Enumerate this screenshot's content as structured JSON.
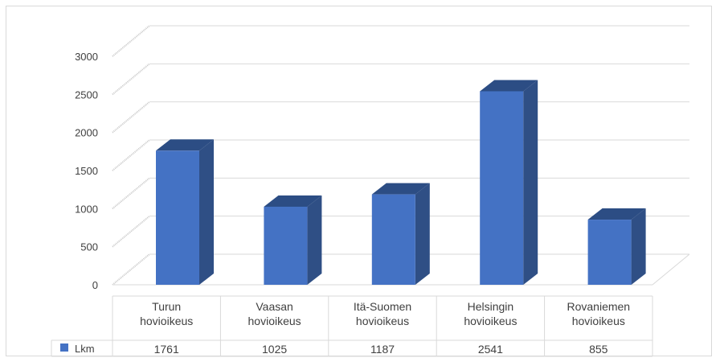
{
  "chart_data": {
    "type": "bar",
    "style": "3d-column-with-data-table",
    "categories": [
      [
        "Turun",
        "hovioikeus"
      ],
      [
        "Vaasan",
        "hovioikeus"
      ],
      [
        "Itä-Suomen",
        "hovioikeus"
      ],
      [
        "Helsingin",
        "hovioikeus"
      ],
      [
        "Rovaniemen",
        "hovioikeus"
      ]
    ],
    "series": [
      {
        "name": "Lkm",
        "values": [
          1761,
          1025,
          1187,
          2541,
          855
        ],
        "color": "#4472c4"
      }
    ],
    "data_labels": [
      "1761",
      "1025",
      "1187",
      "2541",
      "855"
    ],
    "y_ticks": [
      "0",
      "500",
      "1000",
      "1500",
      "2000",
      "2500",
      "3000"
    ],
    "ylim": [
      0,
      3000
    ],
    "grid": true,
    "legend": "in-data-table"
  }
}
